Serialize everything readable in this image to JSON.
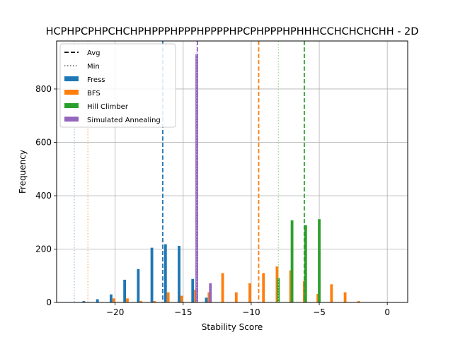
{
  "chart_data": {
    "type": "bar",
    "title": "HCPHPCPHPCHCHPHPPPHPPPHPPPPHPCPHPPPHPHHHCCHCHCHCHH - 2D",
    "xlabel": "Stability Score",
    "ylabel": "Frequency",
    "xlim": [
      -24.3,
      1.5
    ],
    "ylim": [
      0,
      980
    ],
    "x_ticks": [
      -20,
      -15,
      -10,
      -5,
      0
    ],
    "x_tick_labels": [
      "−20",
      "−15",
      "−10",
      "−5",
      "0"
    ],
    "y_ticks": [
      0,
      200,
      400,
      600,
      800
    ],
    "y_tick_labels": [
      "0",
      "200",
      "400",
      "600",
      "800"
    ],
    "grid": true,
    "legend_position": "top-left",
    "legend_style_entries": [
      {
        "label": "Avg",
        "style": "dashed",
        "color": "#000000"
      },
      {
        "label": "Min",
        "style": "dotted",
        "color": "#808080"
      }
    ],
    "bar_width": 0.2,
    "series": [
      {
        "name": "Fress",
        "color": "#1f77b4",
        "x": [
          -22.3,
          -21.3,
          -20.3,
          -19.3,
          -18.3,
          -17.3,
          -16.3,
          -15.3,
          -14.3,
          -13.3
        ],
        "values": [
          5,
          12,
          30,
          85,
          125,
          205,
          218,
          212,
          88,
          18
        ]
      },
      {
        "name": "BFS",
        "color": "#ff7f0e",
        "x": [
          -20.1,
          -19.1,
          -18.1,
          -17.1,
          -16.1,
          -15.1,
          -14.1,
          -13.1,
          -12.1,
          -11.1,
          -10.1,
          -9.1,
          -8.1,
          -7.1,
          -6.1,
          -5.1,
          -4.1,
          -3.1,
          -2.1
        ],
        "values": [
          15,
          15,
          5,
          5,
          38,
          25,
          48,
          38,
          110,
          38,
          72,
          110,
          135,
          120,
          80,
          32,
          68,
          38,
          5
        ]
      },
      {
        "name": "Hill Climber",
        "color": "#2ca02c",
        "x": [
          -8.0,
          -7.0,
          -6.0,
          -5.0
        ],
        "values": [
          92,
          308,
          290,
          312
        ]
      },
      {
        "name": "Simulated Annealing",
        "color": "#9467bd",
        "x": [
          -14.0,
          -13.0
        ],
        "values": [
          930,
          72
        ]
      }
    ],
    "avg_lines": [
      {
        "series": "Fress",
        "x": -16.5,
        "color": "#1f77b4"
      },
      {
        "series": "BFS",
        "x": -9.45,
        "color": "#ff7f0e"
      },
      {
        "series": "Hill Climber",
        "x": -6.1,
        "color": "#2ca02c"
      },
      {
        "series": "Simulated Annealing",
        "x": -13.95,
        "color": "#9467bd"
      }
    ],
    "min_lines": [
      {
        "series": "Fress",
        "x": -23.0,
        "color": "#aec7e8"
      },
      {
        "series": "BFS",
        "x": -22.0,
        "color": "#ffbb78"
      },
      {
        "series": "Hill Climber",
        "x": -8.0,
        "color": "#98df8a"
      },
      {
        "series": "Simulated Annealing",
        "x": -14.0,
        "color": "#c5b0d5"
      }
    ]
  }
}
